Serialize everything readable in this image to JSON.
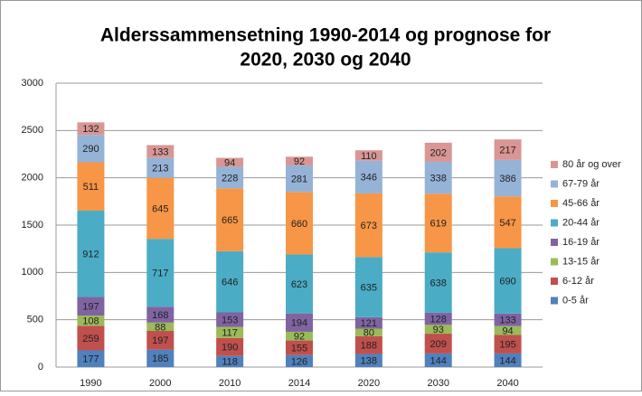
{
  "chart_data": {
    "type": "stacked_bar",
    "title": [
      "Alderssammensetning 1990-2014 og prognose for",
      "2020, 2030 og 2040"
    ],
    "categories": [
      "1990",
      "2000",
      "2010",
      "2014",
      "2020",
      "2030",
      "2040"
    ],
    "series": [
      {
        "name": "0-5 år",
        "color": "#4f81bd",
        "values": [
          177,
          185,
          118,
          126,
          138,
          144,
          144
        ]
      },
      {
        "name": "6-12 år",
        "color": "#c0504d",
        "values": [
          259,
          197,
          190,
          155,
          188,
          209,
          195
        ]
      },
      {
        "name": "13-15 år",
        "color": "#9bbb59",
        "values": [
          108,
          88,
          117,
          92,
          80,
          93,
          94
        ]
      },
      {
        "name": "16-19 år",
        "color": "#8064a2",
        "values": [
          197,
          168,
          153,
          194,
          121,
          128,
          133
        ]
      },
      {
        "name": "20-44 år",
        "color": "#4bacc6",
        "values": [
          912,
          717,
          646,
          623,
          635,
          638,
          690
        ]
      },
      {
        "name": "45-66 år",
        "color": "#f79646",
        "values": [
          511,
          645,
          665,
          660,
          673,
          619,
          547
        ]
      },
      {
        "name": "67-79 år",
        "color": "#95b3d7",
        "values": [
          290,
          213,
          228,
          281,
          346,
          338,
          386
        ]
      },
      {
        "name": "80 år og over",
        "color": "#d99694",
        "values": [
          132,
          133,
          94,
          92,
          110,
          202,
          217
        ]
      }
    ],
    "ylim": [
      0,
      3000
    ],
    "yticks": [
      0,
      500,
      1000,
      1500,
      2000,
      2500,
      3000
    ],
    "grid": true,
    "legend": "right"
  }
}
